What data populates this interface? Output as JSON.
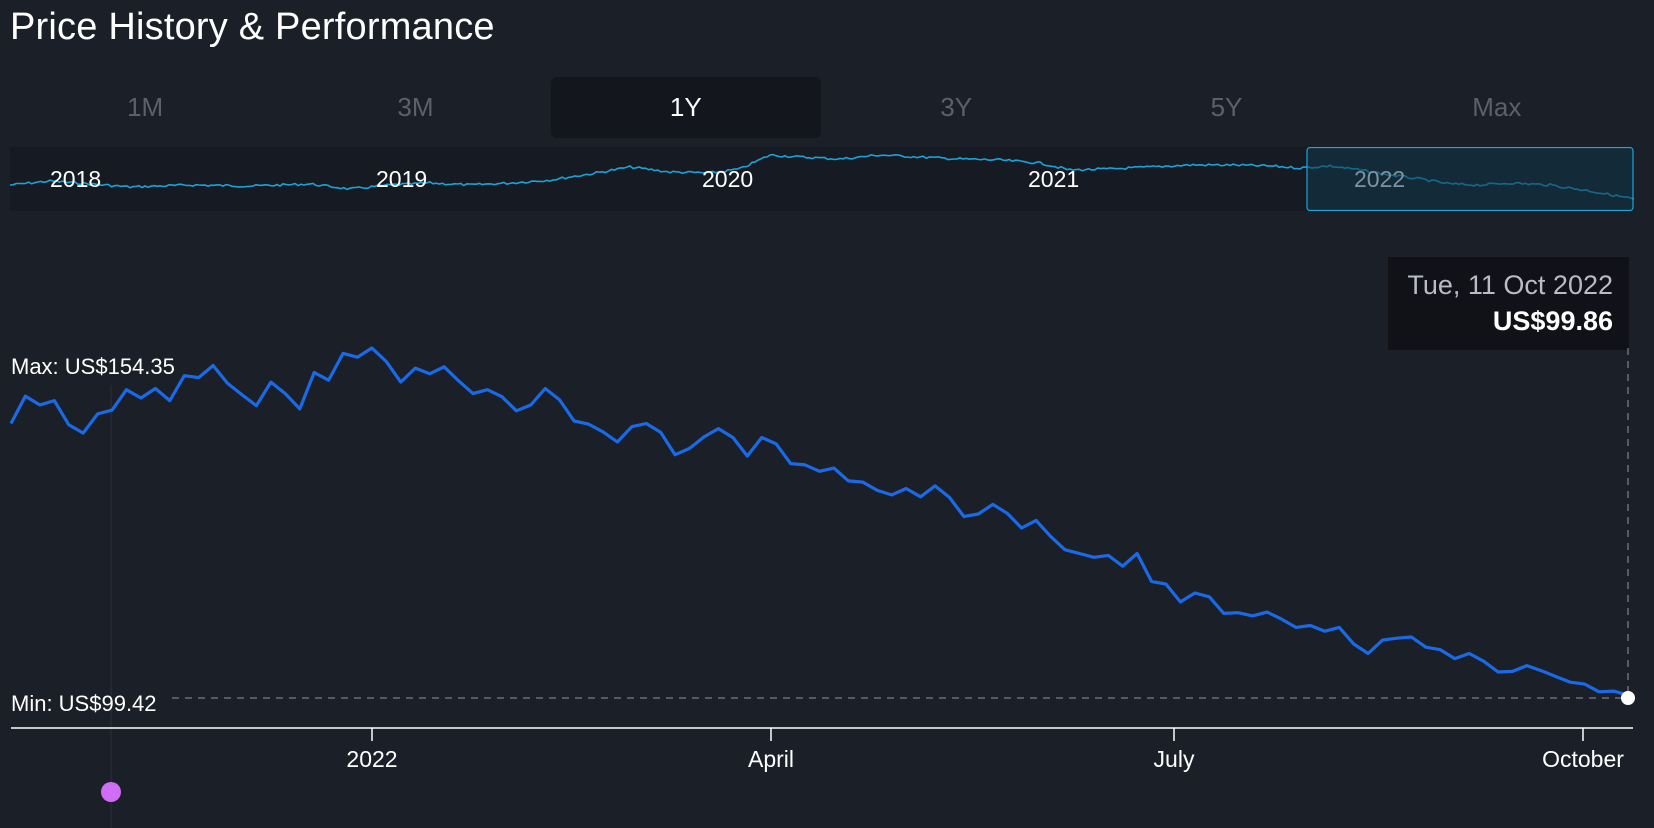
{
  "title": "Price History & Performance",
  "range_tabs": [
    {
      "label": "1M",
      "active": false
    },
    {
      "label": "3M",
      "active": false
    },
    {
      "label": "1Y",
      "active": true
    },
    {
      "label": "5Y",
      "active": false
    },
    {
      "label": "3Y",
      "active": false
    },
    {
      "label": "Max",
      "active": false
    }
  ],
  "tooltip": {
    "date": "Tue, 11 Oct 2022",
    "price": "US$99.86"
  },
  "colors": {
    "background": "#1b1f28",
    "main_line": "#1a6ae8",
    "navigator_line": "#19a3d9",
    "selection_fill": "#13384a",
    "selection_border": "#1aa7dd",
    "event_marker": "#cf6ef5",
    "current_marker": "#ffffff"
  },
  "navigator": {
    "year_labels": [
      "2018",
      "2019",
      "2020",
      "2021",
      "2022"
    ],
    "selected_range": [
      "2021-10-11",
      "2022-10-11"
    ]
  },
  "chart_data": {
    "type": "line",
    "max_label": "Max: US$154.35",
    "min_label": "Min: US$99.42",
    "x_ticks": [
      "2022",
      "April",
      "July",
      "October"
    ],
    "ylim": [
      99.42,
      154.35
    ],
    "series": [
      {
        "values": [
          142.5,
          146.8,
          145.4,
          146.1,
          142.3,
          141.0,
          144.0,
          144.6,
          147.8,
          146.5,
          148.0,
          146.1,
          150.0,
          149.7,
          151.6,
          148.8,
          147.0,
          145.3,
          149.0,
          147.2,
          144.8,
          150.5,
          149.3,
          153.5,
          152.9,
          154.35,
          152.2,
          149.0,
          151.2,
          150.3,
          151.4,
          149.2,
          147.2,
          147.8,
          146.7,
          144.5,
          145.4,
          148.0,
          146.2,
          142.9,
          142.4,
          141.2,
          139.6,
          142.0,
          142.5,
          141.1,
          137.6,
          138.6,
          140.4,
          141.7,
          140.3,
          137.4,
          140.3,
          139.3,
          136.2,
          136.0,
          135.0,
          135.5,
          133.5,
          133.3,
          132.0,
          131.3,
          132.3,
          131.0,
          132.7,
          130.9,
          127.9,
          128.3,
          129.8,
          128.4,
          126.1,
          127.3,
          124.8,
          122.7,
          122.1,
          121.5,
          121.8,
          120.1,
          122.1,
          117.7,
          117.3,
          114.5,
          115.9,
          115.3,
          112.7,
          112.8,
          112.3,
          112.9,
          111.8,
          110.5,
          110.8,
          109.9,
          110.5,
          107.9,
          106.4,
          108.5,
          108.8,
          109.0,
          107.4,
          107.0,
          105.6,
          106.4,
          105.2,
          103.5,
          103.6,
          104.5,
          103.7,
          102.8,
          101.9,
          101.6,
          100.4,
          100.5,
          99.86
        ]
      }
    ]
  }
}
